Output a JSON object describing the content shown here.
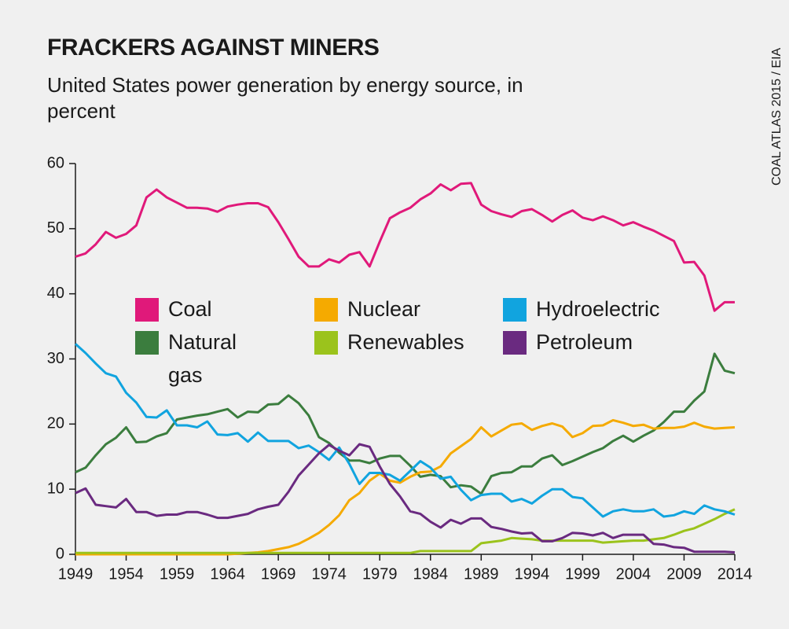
{
  "chart_data": {
    "type": "line",
    "title": "FRACKERS AGAINST MINERS",
    "subtitle": "United States power generation by energy source, in percent",
    "source": "COAL ATLAS 2015 / EIA",
    "x": [
      1949,
      1950,
      1951,
      1952,
      1953,
      1954,
      1955,
      1956,
      1957,
      1958,
      1959,
      1960,
      1961,
      1962,
      1963,
      1964,
      1965,
      1966,
      1967,
      1968,
      1969,
      1970,
      1971,
      1972,
      1973,
      1974,
      1975,
      1976,
      1977,
      1978,
      1979,
      1980,
      1981,
      1982,
      1983,
      1984,
      1985,
      1986,
      1987,
      1988,
      1989,
      1990,
      1991,
      1992,
      1993,
      1994,
      1995,
      1996,
      1997,
      1998,
      1999,
      2000,
      2001,
      2002,
      2003,
      2004,
      2005,
      2006,
      2007,
      2008,
      2009,
      2010,
      2011,
      2012,
      2013,
      2014
    ],
    "xlim": [
      1949,
      2014
    ],
    "xticks": [
      1949,
      1954,
      1959,
      1964,
      1969,
      1974,
      1979,
      1984,
      1989,
      1994,
      1999,
      2004,
      2009,
      2014
    ],
    "ylim": [
      0,
      60
    ],
    "yticks": [
      0,
      10,
      20,
      30,
      40,
      50,
      60
    ],
    "series": [
      {
        "name": "Coal",
        "color": "#e0197a",
        "values": [
          45.7,
          46.2,
          47.6,
          49.5,
          48.6,
          49.2,
          50.5,
          54.8,
          56.0,
          54.8,
          54.0,
          53.2,
          53.2,
          53.1,
          52.6,
          53.4,
          53.7,
          53.9,
          53.9,
          53.3,
          51.0,
          48.4,
          45.7,
          44.2,
          44.2,
          45.3,
          44.8,
          46.0,
          46.4,
          44.2,
          48.0,
          51.6,
          52.5,
          53.2,
          54.5,
          55.4,
          56.8,
          55.9,
          56.9,
          57.0,
          53.7,
          52.7,
          52.2,
          51.8,
          52.7,
          53.0,
          52.1,
          51.1,
          52.1,
          52.8,
          51.7,
          51.3,
          51.9,
          51.3,
          50.5,
          51.0,
          50.3,
          49.7,
          48.9,
          48.1,
          44.8,
          44.9,
          42.8,
          37.4,
          38.7,
          38.7
        ]
      },
      {
        "name": "Natural gas",
        "color": "#3b7d3e",
        "values": [
          12.6,
          13.3,
          15.2,
          16.9,
          17.9,
          19.5,
          17.2,
          17.3,
          18.1,
          18.6,
          20.7,
          21.0,
          21.3,
          21.5,
          21.9,
          22.3,
          21.0,
          21.9,
          21.8,
          23.0,
          23.1,
          24.4,
          23.2,
          21.3,
          18.0,
          17.1,
          15.6,
          14.4,
          14.4,
          14.0,
          14.7,
          15.1,
          15.1,
          13.6,
          11.9,
          12.2,
          12.0,
          10.3,
          10.6,
          10.4,
          9.3,
          12.0,
          12.5,
          12.6,
          13.5,
          13.5,
          14.7,
          15.2,
          13.7,
          14.3,
          15.0,
          15.7,
          16.3,
          17.4,
          18.2,
          17.3,
          18.2,
          19.0,
          20.3,
          21.9,
          21.9,
          23.6,
          25.0,
          30.8,
          28.2,
          27.8
        ]
      },
      {
        "name": "Nuclear",
        "color": "#f5aa00",
        "values": [
          0,
          0,
          0,
          0,
          0,
          0,
          0,
          0,
          0,
          0,
          0,
          0,
          0,
          0,
          0,
          0,
          0.1,
          0.2,
          0.3,
          0.5,
          0.8,
          1.1,
          1.6,
          2.4,
          3.3,
          4.5,
          6.0,
          8.3,
          9.4,
          11.3,
          12.4,
          11.3,
          11.0,
          11.9,
          12.6,
          12.7,
          13.5,
          15.5,
          16.6,
          17.7,
          19.5,
          18.1,
          19.0,
          19.9,
          20.1,
          19.1,
          19.7,
          20.1,
          19.6,
          18.0,
          18.6,
          19.7,
          19.8,
          20.6,
          20.2,
          19.7,
          19.9,
          19.3,
          19.4,
          19.4,
          19.6,
          20.2,
          19.6,
          19.3,
          19.4,
          19.5
        ]
      },
      {
        "name": "Renewables",
        "color": "#9bc31c",
        "values": [
          0.2,
          0.2,
          0.2,
          0.2,
          0.2,
          0.2,
          0.2,
          0.2,
          0.2,
          0.2,
          0.2,
          0.2,
          0.2,
          0.2,
          0.2,
          0.2,
          0.2,
          0.2,
          0.2,
          0.2,
          0.2,
          0.2,
          0.2,
          0.2,
          0.2,
          0.2,
          0.2,
          0.2,
          0.2,
          0.2,
          0.2,
          0.2,
          0.2,
          0.2,
          0.5,
          0.5,
          0.5,
          0.5,
          0.5,
          0.5,
          1.7,
          1.9,
          2.1,
          2.5,
          2.4,
          2.3,
          2.1,
          2.1,
          2.1,
          2.1,
          2.1,
          2.1,
          1.8,
          1.9,
          2.0,
          2.1,
          2.1,
          2.3,
          2.5,
          3.0,
          3.6,
          4.0,
          4.7,
          5.4,
          6.2,
          6.9
        ]
      },
      {
        "name": "Hydroelectric",
        "color": "#11a4df",
        "values": [
          32.3,
          30.9,
          29.3,
          27.8,
          27.3,
          24.8,
          23.3,
          21.1,
          21.0,
          22.1,
          19.8,
          19.8,
          19.5,
          20.4,
          18.4,
          18.3,
          18.6,
          17.3,
          18.7,
          17.4,
          17.4,
          17.4,
          16.3,
          16.7,
          15.7,
          14.5,
          16.4,
          13.9,
          10.8,
          12.5,
          12.5,
          12.2,
          11.3,
          12.8,
          14.3,
          13.3,
          11.6,
          11.9,
          9.9,
          8.3,
          9.1,
          9.3,
          9.3,
          8.1,
          8.5,
          7.8,
          9.0,
          10.0,
          10.0,
          8.8,
          8.6,
          7.2,
          5.8,
          6.6,
          6.9,
          6.6,
          6.6,
          6.9,
          5.8,
          6.0,
          6.6,
          6.2,
          7.5,
          6.9,
          6.6,
          6.1
        ]
      },
      {
        "name": "Petroleum",
        "color": "#6a2a80",
        "values": [
          9.4,
          10.1,
          7.6,
          7.4,
          7.2,
          8.5,
          6.5,
          6.5,
          5.9,
          6.1,
          6.1,
          6.5,
          6.5,
          6.1,
          5.6,
          5.6,
          5.9,
          6.2,
          6.9,
          7.3,
          7.6,
          9.6,
          12.1,
          13.8,
          15.5,
          16.8,
          15.9,
          15.2,
          16.9,
          16.5,
          13.5,
          10.8,
          8.9,
          6.6,
          6.2,
          5.0,
          4.1,
          5.3,
          4.7,
          5.5,
          5.5,
          4.2,
          3.9,
          3.5,
          3.2,
          3.3,
          2.0,
          2.0,
          2.5,
          3.3,
          3.2,
          2.9,
          3.3,
          2.5,
          3.0,
          3.0,
          3.0,
          1.6,
          1.5,
          1.1,
          1.0,
          0.4,
          0.4,
          0.4,
          0.4,
          0.3
        ]
      }
    ]
  }
}
